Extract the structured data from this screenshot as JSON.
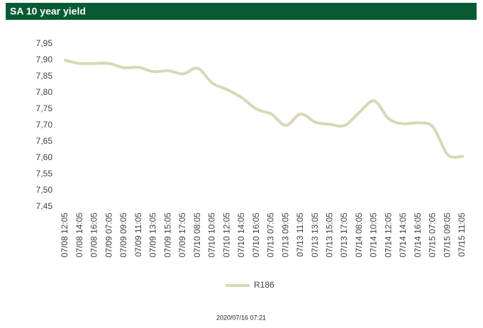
{
  "chart_data": {
    "type": "line",
    "title": "SA 10 year yield",
    "footer": "2020/07/16 07:21",
    "categories": [
      "07/08 12:05",
      "07/08 14:05",
      "07/08 16:05",
      "07/09 07:05",
      "07/09 09:05",
      "07/09 11:05",
      "07/09 13:05",
      "07/09 15:05",
      "07/09 17:05",
      "07/10 08:05",
      "07/10 10:05",
      "07/10 12:05",
      "07/10 14:05",
      "07/10 16:05",
      "07/13 07:05",
      "07/13 09:05",
      "07/13 11:05",
      "07/13 13:05",
      "07/13 15:05",
      "07/13 17:05",
      "07/14 08:05",
      "07/14 10:05",
      "07/14 12:05",
      "07/14 14:05",
      "07/14 16:05",
      "07/15 07:05",
      "07/15 09:05",
      "07/15 11:05"
    ],
    "series": [
      {
        "name": "R186",
        "color": "#d9d7b5",
        "values": [
          7.9,
          7.89,
          7.89,
          7.89,
          7.877,
          7.878,
          7.865,
          7.868,
          7.858,
          7.875,
          7.83,
          7.81,
          7.785,
          7.75,
          7.735,
          7.7,
          7.735,
          7.71,
          7.703,
          7.7,
          7.74,
          7.775,
          7.72,
          7.705,
          7.708,
          7.695,
          7.61,
          7.605
        ]
      }
    ],
    "ylim": [
      7.45,
      7.95
    ],
    "yticks": [
      {
        "value": 7.45,
        "label": "7,45"
      },
      {
        "value": 7.5,
        "label": "7,50"
      },
      {
        "value": 7.55,
        "label": "7,55"
      },
      {
        "value": 7.6,
        "label": "7,60"
      },
      {
        "value": 7.65,
        "label": "7,65"
      },
      {
        "value": 7.7,
        "label": "7,70"
      },
      {
        "value": 7.75,
        "label": "7,75"
      },
      {
        "value": 7.8,
        "label": "7,80"
      },
      {
        "value": 7.85,
        "label": "7,85"
      },
      {
        "value": 7.9,
        "label": "7,90"
      },
      {
        "value": 7.95,
        "label": "7,95"
      }
    ],
    "grid": false,
    "header_color": "#085a34",
    "legend": "bottom"
  }
}
